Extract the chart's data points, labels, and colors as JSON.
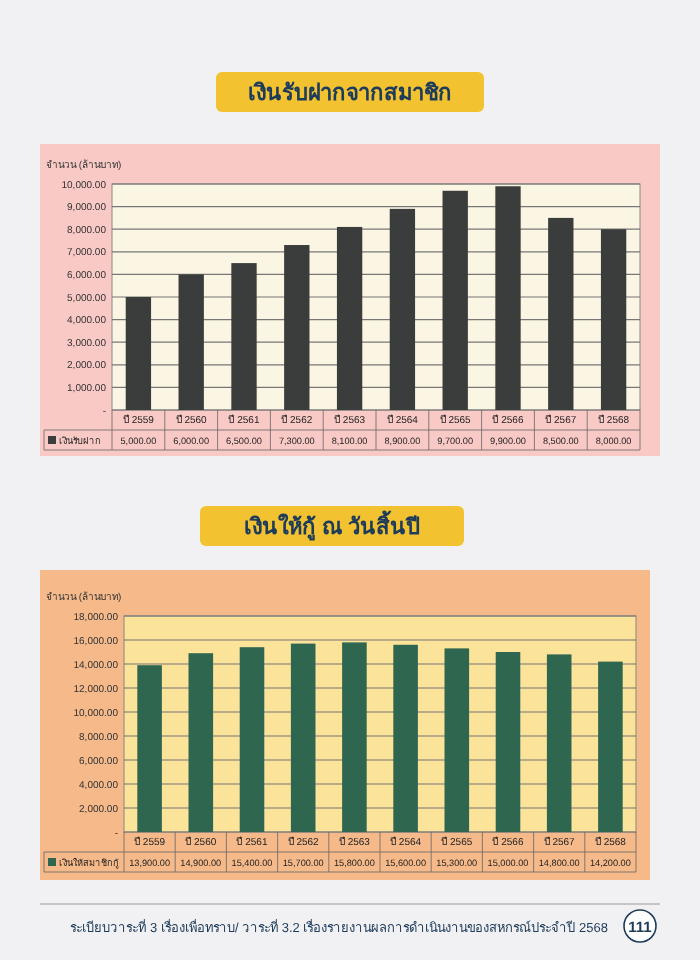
{
  "chart_data": [
    {
      "type": "bar",
      "title": "เงินรับฝากจากสมาชิก",
      "ylabel": "จำนวน (ล้านบาท)",
      "categories": [
        "ปี 2559",
        "ปี 2560",
        "ปี 2561",
        "ปี 2562",
        "ปี 2563",
        "ปี 2564",
        "ปี 2565",
        "ปี 2566",
        "ปี 2567",
        "ปี 2568"
      ],
      "series": [
        {
          "name": "เงินรับฝาก",
          "color": "#3a3d3c",
          "values": [
            5000,
            6000,
            6500,
            7300,
            8100,
            8900,
            9700,
            9900,
            8500,
            8000
          ],
          "value_labels": [
            "5,000.00",
            "6,000.00",
            "6,500.00",
            "7,300.00",
            "8,100.00",
            "8,900.00",
            "9,700.00",
            "9,900.00",
            "8,500.00",
            "8,000.00"
          ]
        }
      ],
      "ylim": [
        0,
        10000
      ],
      "yticks": [
        {
          "value": 0,
          "label": "-"
        },
        {
          "value": 1000,
          "label": "1,000.00"
        },
        {
          "value": 2000,
          "label": "2,000.00"
        },
        {
          "value": 3000,
          "label": "3,000.00"
        },
        {
          "value": 4000,
          "label": "4,000.00"
        },
        {
          "value": 5000,
          "label": "5,000.00"
        },
        {
          "value": 6000,
          "label": "6,000.00"
        },
        {
          "value": 7000,
          "label": "7,000.00"
        },
        {
          "value": 8000,
          "label": "8,000.00"
        },
        {
          "value": 9000,
          "label": "9,000.00"
        },
        {
          "value": 10000,
          "label": "10,000.00"
        }
      ],
      "grid": "y",
      "legend": "bottom"
    },
    {
      "type": "bar",
      "title": "เงินให้กู้ ณ วันสิ้นปี",
      "ylabel": "จำนวน (ล้านบาท)",
      "categories": [
        "ปี 2559",
        "ปี 2560",
        "ปี 2561",
        "ปี 2562",
        "ปี 2563",
        "ปี 2564",
        "ปี 2565",
        "ปี 2566",
        "ปี 2567",
        "ปี 2568"
      ],
      "series": [
        {
          "name": "เงินให้สมาชิกกู้",
          "color": "#2e6650",
          "values": [
            13900,
            14900,
            15400,
            15700,
            15800,
            15600,
            15300,
            15000,
            14800,
            14200
          ],
          "value_labels": [
            "13,900.00",
            "14,900.00",
            "15,400.00",
            "15,700.00",
            "15,800.00",
            "15,600.00",
            "15,300.00",
            "15,000.00",
            "14,800.00",
            "14,200.00"
          ]
        }
      ],
      "ylim": [
        0,
        18000
      ],
      "yticks": [
        {
          "value": 0,
          "label": "-"
        },
        {
          "value": 2000,
          "label": "2,000.00"
        },
        {
          "value": 4000,
          "label": "4,000.00"
        },
        {
          "value": 6000,
          "label": "6,000.00"
        },
        {
          "value": 8000,
          "label": "8,000.00"
        },
        {
          "value": 10000,
          "label": "10,000.00"
        },
        {
          "value": 12000,
          "label": "12,000.00"
        },
        {
          "value": 14000,
          "label": "14,000.00"
        },
        {
          "value": 16000,
          "label": "16,000.00"
        },
        {
          "value": 18000,
          "label": "18,000.00"
        }
      ],
      "grid": "y",
      "legend": "bottom",
      "annotations": [
        "ระเบียบวาระที่ 3 เรื่องเพื่อทราบ/ วาระที่ 3.2 เรื่องรายงานผลการดำเนินงานของสหกรณ์ประจำปี 2568",
        "111"
      ]
    }
  ]
}
